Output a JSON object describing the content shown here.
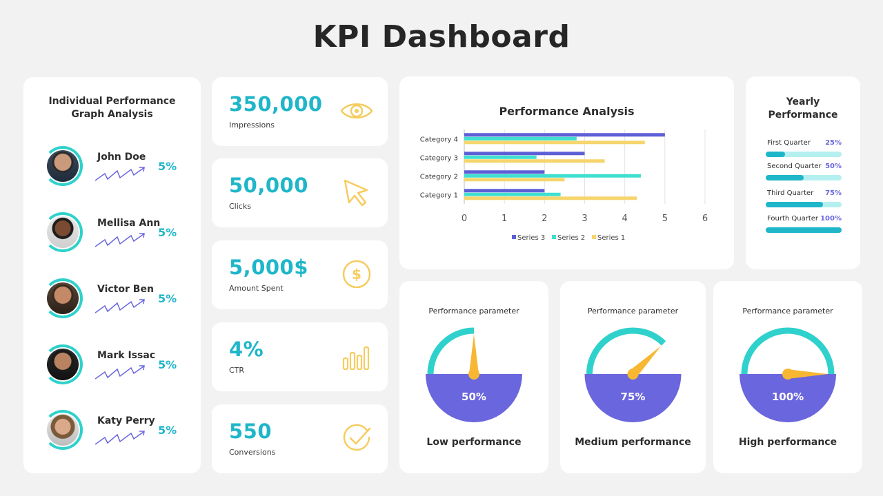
{
  "title": "KPI Dashboard",
  "colors": {
    "teal": "#2fd1cc",
    "cyan_text": "#1fb6c9",
    "purple": "#6a66de",
    "yellow": "#f6cc5e",
    "needle": "#f7b733"
  },
  "people_panel": {
    "title_line1": "Individual Performance",
    "title_line2": "Graph Analysis",
    "people": [
      {
        "name": "John Doe",
        "pct": "5%",
        "icon": "avatar-photo"
      },
      {
        "name": "Mellisa Ann",
        "pct": "5%",
        "icon": "avatar-photo"
      },
      {
        "name": "Victor Ben",
        "pct": "5%",
        "icon": "avatar-photo"
      },
      {
        "name": "Mark Issac",
        "pct": "5%",
        "icon": "avatar-photo"
      },
      {
        "name": "Katy Perry",
        "pct": "5%",
        "icon": "avatar-photo"
      }
    ]
  },
  "metrics": [
    {
      "value": "350,000",
      "label": "Impressions",
      "icon": "eye-icon"
    },
    {
      "value": "50,000",
      "label": "Clicks",
      "icon": "cursor-icon"
    },
    {
      "value": "5,000$",
      "label": "Amount Spent",
      "icon": "dollar-icon"
    },
    {
      "value": "4%",
      "label": "CTR",
      "icon": "bar-chart-icon"
    },
    {
      "value": "550",
      "label": "Conversions",
      "icon": "check-circle-icon"
    }
  ],
  "chart_data": {
    "type": "bar",
    "orientation": "horizontal",
    "title": "Performance Analysis",
    "categories": [
      "Category 1",
      "Category 2",
      "Category 3",
      "Category 4"
    ],
    "series": [
      {
        "name": "Series 1",
        "values": [
          4.3,
          2.5,
          3.5,
          4.5
        ],
        "color": "#f6d56e"
      },
      {
        "name": "Series 2",
        "values": [
          2.4,
          4.4,
          1.8,
          2.8
        ],
        "color": "#3fe0d0"
      },
      {
        "name": "Series 3",
        "values": [
          2.0,
          2.0,
          3.0,
          5.0
        ],
        "color": "#5d5fd6"
      }
    ],
    "x_ticks": [
      "0",
      "1",
      "2",
      "3",
      "4",
      "5",
      "6"
    ],
    "xlim": [
      0,
      6
    ],
    "grid": true,
    "legend_position": "bottom"
  },
  "yearly": {
    "title_line1": "Yearly",
    "title_line2": "Performance",
    "quarters": [
      {
        "label": "First Quarter",
        "pct": "25%",
        "fill": 0.25
      },
      {
        "label": "Second Quarter",
        "pct": "50%",
        "fill": 0.5
      },
      {
        "label": "Third Quarter",
        "pct": "75%",
        "fill": 0.75
      },
      {
        "label": "Fourth Quarter",
        "pct": "100%",
        "fill": 1.0
      }
    ]
  },
  "gauges": [
    {
      "param": "Performance parameter",
      "value_text": "50%",
      "fill": 0.5,
      "name": "Low performance"
    },
    {
      "param": "Performance parameter",
      "value_text": "75%",
      "fill": 0.75,
      "name": "Medium performance"
    },
    {
      "param": "Performance parameter",
      "value_text": "100%",
      "fill": 1.0,
      "name": "High performance"
    }
  ]
}
